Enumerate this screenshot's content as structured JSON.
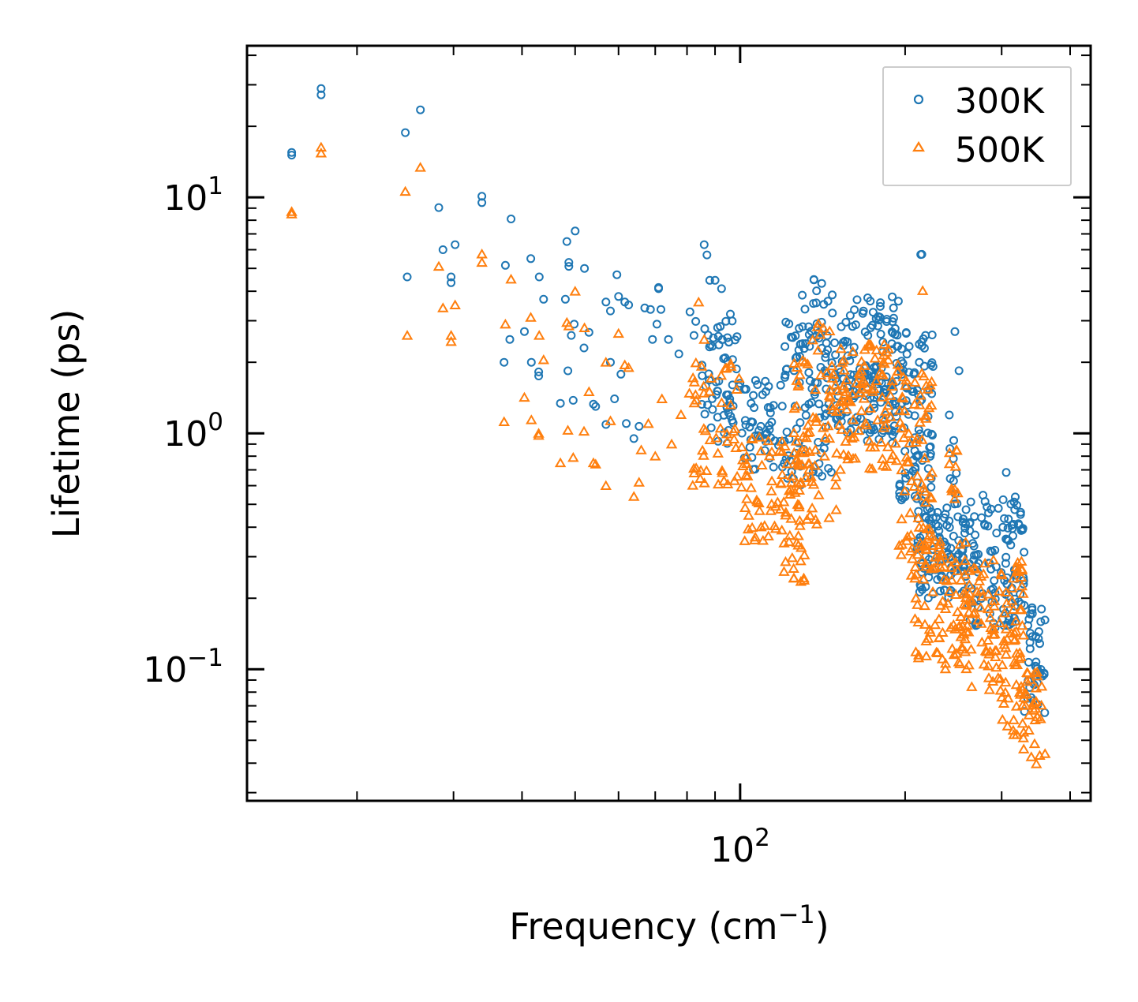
{
  "chart_data": {
    "type": "scatter",
    "xscale": "log",
    "yscale": "log",
    "xlabel": "Frequency (cm",
    "xlabel_sup": "−1",
    "xlabel_close": ")",
    "ylabel": "Lifetime (ps)",
    "xlim": [
      12.6,
      436
    ],
    "ylim": [
      0.0277,
      43.9
    ],
    "x_ticks": [
      {
        "value": 100,
        "base": "10",
        "exp": "2"
      }
    ],
    "y_ticks": [
      {
        "value": 10,
        "base": "10",
        "exp": "1"
      },
      {
        "value": 1,
        "base": "10",
        "exp": "0"
      },
      {
        "value": 0.1,
        "base": "10",
        "exp": "−1"
      }
    ],
    "grid": false,
    "legend_position": "top-right",
    "series": [
      {
        "name": "300K",
        "color": "#1f77b4",
        "marker": "circle-open",
        "points": [
          [
            15.2,
            15.5
          ],
          [
            15.2,
            15.1
          ],
          [
            17.2,
            28.9
          ],
          [
            17.2,
            27.2
          ],
          [
            24.5,
            18.8
          ],
          [
            26.1,
            23.5
          ],
          [
            24.7,
            4.6
          ],
          [
            28.2,
            9.05
          ],
          [
            28.7,
            6.0
          ],
          [
            29.7,
            4.6
          ],
          [
            29.7,
            4.35
          ],
          [
            30.2,
            6.3
          ],
          [
            33.8,
            10.1
          ],
          [
            33.8,
            9.5
          ],
          [
            38.2,
            8.1
          ],
          [
            37.3,
            5.15
          ],
          [
            38,
            2.5
          ],
          [
            37.1,
            2.0
          ],
          [
            41.5,
            5.5
          ],
          [
            43,
            4.6
          ],
          [
            43.8,
            3.7
          ],
          [
            42.9,
            1.82
          ],
          [
            42.9,
            1.75
          ],
          [
            41.6,
            2.0
          ],
          [
            40.4,
            2.7
          ],
          [
            48.3,
            6.5
          ],
          [
            48.7,
            5.3
          ],
          [
            48.7,
            5.1
          ],
          [
            50,
            7.2
          ],
          [
            52,
            5.0
          ],
          [
            48,
            3.7
          ],
          [
            48.5,
            1.84
          ],
          [
            49.2,
            2.6
          ],
          [
            49.8,
            2.9
          ],
          [
            51.9,
            2.3
          ],
          [
            53,
            2.68
          ],
          [
            47,
            1.34
          ],
          [
            49.6,
            1.38
          ],
          [
            54,
            1.33
          ],
          [
            54.5,
            1.3
          ],
          [
            56.9,
            1.09
          ],
          [
            56.9,
            3.6
          ],
          [
            58,
            3.3
          ],
          [
            60,
            3.8
          ],
          [
            59.6,
            4.7
          ],
          [
            61.6,
            3.6
          ],
          [
            62.6,
            3.5
          ],
          [
            58,
            2.0
          ],
          [
            59,
            1.4
          ],
          [
            60.6,
            1.78
          ],
          [
            62,
            1.1
          ],
          [
            64,
            0.95
          ],
          [
            65.4,
            1.07
          ],
          [
            67,
            3.4
          ],
          [
            68.6,
            3.35
          ],
          [
            69.2,
            2.5
          ],
          [
            71,
            4.1
          ],
          [
            71,
            4.15
          ],
          [
            71.7,
            3.35
          ],
          [
            70.5,
            2.9
          ],
          [
            74,
            2.5
          ],
          [
            77.3,
            2.17
          ],
          [
            83,
            2.98
          ],
          [
            81,
            3.27
          ],
          [
            82.4,
            2.6
          ],
          [
            86,
            6.3
          ],
          [
            87,
            5.7
          ],
          [
            88,
            4.45
          ],
          [
            90,
            4.45
          ],
          [
            92.5,
            4.1
          ],
          [
            96,
            3.2
          ]
        ],
        "dense_regions": [
          [
            85,
            100,
            0.9,
            3.0,
            60
          ],
          [
            100,
            120,
            0.7,
            1.7,
            50
          ],
          [
            120,
            150,
            0.6,
            3.0,
            90
          ],
          [
            120,
            150,
            1.5,
            4.0,
            20
          ],
          [
            135,
            145,
            3.5,
            4.7,
            6
          ],
          [
            150,
            195,
            1.0,
            3.8,
            120
          ],
          [
            150,
            195,
            0.9,
            2.0,
            40
          ],
          [
            195,
            225,
            0.5,
            2.8,
            90
          ],
          [
            213,
            216,
            5.6,
            5.8,
            2
          ],
          [
            210,
            260,
            0.2,
            0.5,
            110
          ],
          [
            240,
            250,
            0.5,
            1.3,
            10
          ],
          [
            244,
            248,
            2.6,
            2.7,
            1
          ],
          [
            250,
            253,
            1.8,
            1.9,
            1
          ],
          [
            260,
            330,
            0.15,
            0.55,
            120
          ],
          [
            303,
            309,
            0.68,
            0.72,
            1
          ],
          [
            330,
            360,
            0.065,
            0.2,
            40
          ]
        ]
      },
      {
        "name": "500K",
        "color": "#ff7f0e",
        "marker": "triangle-open",
        "points": [
          [
            15.2,
            8.7
          ],
          [
            15.2,
            8.5
          ],
          [
            17.2,
            16.3
          ],
          [
            17.2,
            15.4
          ],
          [
            24.5,
            10.6
          ],
          [
            26.1,
            13.4
          ],
          [
            24.7,
            2.6
          ],
          [
            28.2,
            5.1
          ],
          [
            28.7,
            3.4
          ],
          [
            29.7,
            2.6
          ],
          [
            29.7,
            2.45
          ],
          [
            30.2,
            3.5
          ],
          [
            33.8,
            5.75
          ],
          [
            33.8,
            5.3
          ],
          [
            38.2,
            4.5
          ],
          [
            37.3,
            2.9
          ],
          [
            37.1,
            1.12
          ],
          [
            40.4,
            1.42
          ],
          [
            41.5,
            3.1
          ],
          [
            41.6,
            1.14
          ],
          [
            42.9,
            1.0
          ],
          [
            42.9,
            0.98
          ],
          [
            43,
            2.6
          ],
          [
            43.8,
            2.05
          ],
          [
            48.3,
            2.95
          ],
          [
            48.7,
            2.85
          ],
          [
            50,
            4.0
          ],
          [
            48.5,
            1.03
          ],
          [
            51.9,
            1.02
          ],
          [
            52,
            2.8
          ],
          [
            53,
            1.5
          ],
          [
            47,
            0.75
          ],
          [
            49.6,
            0.79
          ],
          [
            54,
            0.75
          ],
          [
            54.5,
            0.74
          ],
          [
            56.9,
            0.6
          ],
          [
            56.9,
            2.0
          ],
          [
            58,
            1.13
          ],
          [
            60,
            2.65
          ],
          [
            61.6,
            1.95
          ],
          [
            62.6,
            1.9
          ],
          [
            64,
            0.54
          ],
          [
            65.4,
            0.62
          ],
          [
            66,
            0.85
          ],
          [
            68,
            1.1
          ],
          [
            70,
            0.8
          ],
          [
            72,
            1.4
          ],
          [
            75,
            0.9
          ],
          [
            78,
            1.2
          ],
          [
            84,
            3.6
          ],
          [
            86,
            2.5
          ]
        ],
        "dense_regions": [
          [
            80,
            100,
            0.6,
            2.0,
            50
          ],
          [
            100,
            120,
            0.35,
            1.0,
            50
          ],
          [
            120,
            135,
            0.23,
            0.9,
            50
          ],
          [
            125,
            150,
            0.4,
            2.5,
            60
          ],
          [
            138,
            150,
            2.5,
            3.0,
            5
          ],
          [
            150,
            195,
            0.7,
            2.4,
            100
          ],
          [
            195,
            225,
            0.3,
            1.8,
            70
          ],
          [
            213,
            216,
            4.0,
            4.2,
            1
          ],
          [
            205,
            260,
            0.1,
            0.35,
            100
          ],
          [
            240,
            250,
            0.5,
            0.9,
            10
          ],
          [
            260,
            330,
            0.07,
            0.3,
            100
          ],
          [
            300,
            330,
            0.045,
            0.15,
            20
          ],
          [
            325,
            360,
            0.038,
            0.1,
            30
          ]
        ]
      }
    ]
  }
}
